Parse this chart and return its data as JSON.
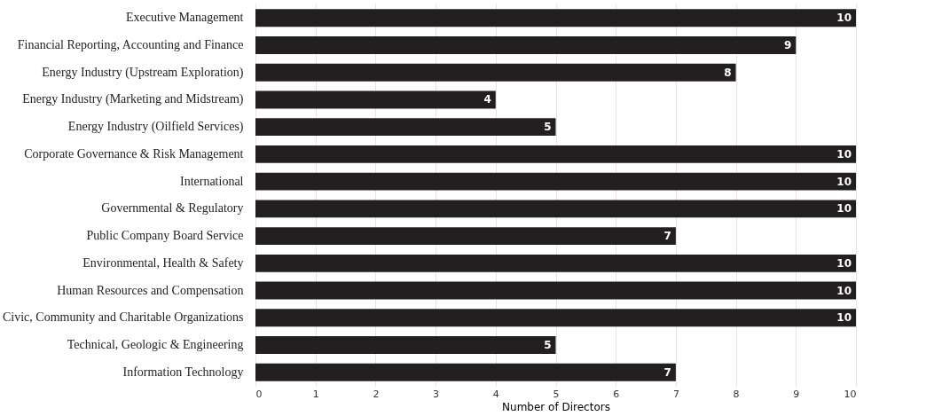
{
  "chart_data": {
    "type": "bar",
    "orientation": "horizontal",
    "xlabel": "Number of Directors",
    "categories": [
      "Executive Management",
      "Financial Reporting, Accounting and Finance",
      "Energy Industry (Upstream Exploration)",
      "Energy Industry (Marketing and Midstream)",
      "Energy Industry (Oilfield Services)",
      "Corporate Governance & Risk Management",
      "International",
      "Governmental & Regulatory",
      "Public Company Board Service",
      "Environmental, Health & Safety",
      "Human Resources and Compensation",
      "Civic, Community and Charitable Organizations",
      "Technical, Geologic & Engineering",
      "Information Technology"
    ],
    "values": [
      10,
      9,
      8,
      4,
      5,
      10,
      10,
      10,
      7,
      10,
      10,
      10,
      5,
      7
    ],
    "color": "#231f20",
    "xlim": [
      0,
      10
    ],
    "xticks": [
      0,
      1,
      2,
      3,
      4,
      5,
      6,
      7,
      8,
      9,
      10
    ],
    "grid": "x",
    "data_labels": true
  }
}
